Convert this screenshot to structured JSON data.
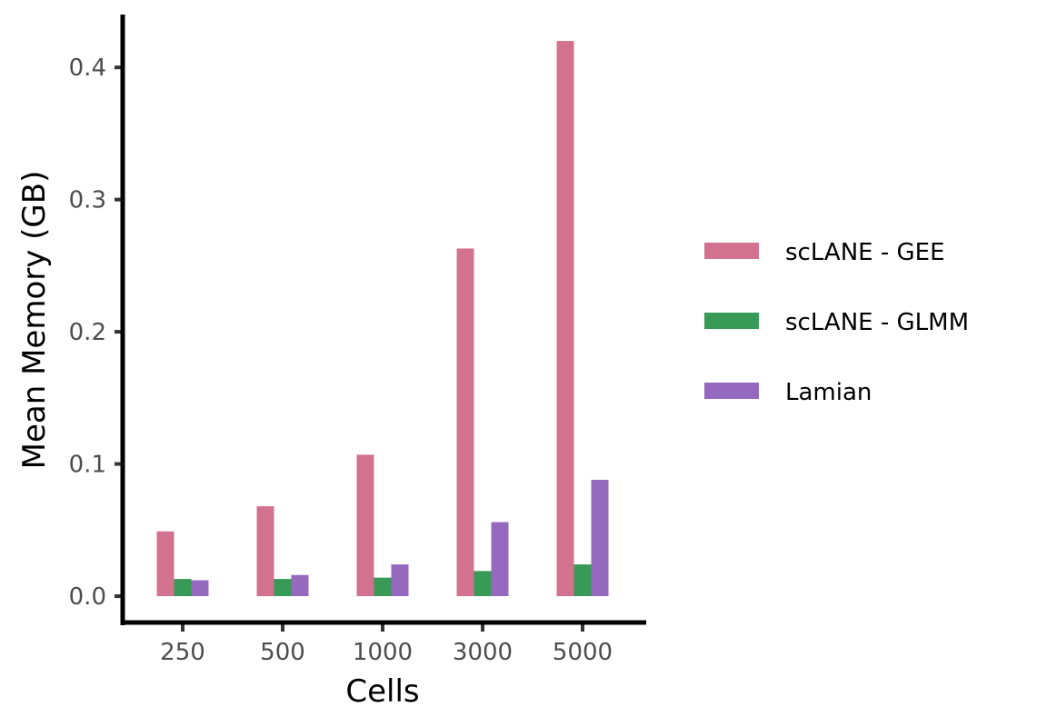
{
  "chart_data": {
    "type": "bar",
    "title": "",
    "xlabel": "Cells",
    "ylabel": "Mean Memory (GB)",
    "categories": [
      "250",
      "500",
      "1000",
      "3000",
      "5000"
    ],
    "ylim": [
      -0.022,
      0.44
    ],
    "yticks": [
      0.0,
      0.1,
      0.2,
      0.3,
      0.4
    ],
    "ytick_labels": [
      "0.0",
      "0.1",
      "0.2",
      "0.3",
      "0.4"
    ],
    "grid": false,
    "legend_position": "right",
    "series": [
      {
        "name": "scLANE - GEE",
        "color": "#d3728f",
        "values": [
          0.049,
          0.068,
          0.107,
          0.263,
          0.42
        ]
      },
      {
        "name": "scLANE - GLMM",
        "color": "#379a56",
        "values": [
          0.013,
          0.013,
          0.014,
          0.019,
          0.024
        ]
      },
      {
        "name": "Lamian",
        "color": "#9569bd",
        "values": [
          0.012,
          0.016,
          0.024,
          0.056,
          0.088
        ]
      }
    ]
  }
}
